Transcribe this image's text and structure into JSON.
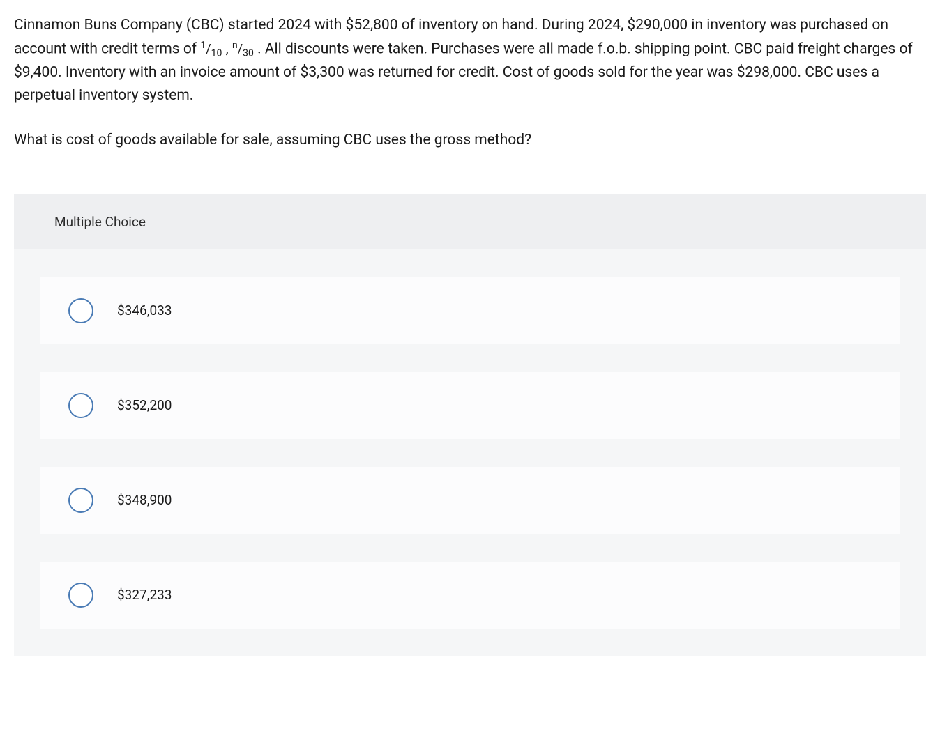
{
  "question": {
    "para1_part1": "Cinnamon Buns Company (CBC) started 2024 with $52,800 of inventory on hand. During 2024, $290,000 in inventory was purchased on account with credit terms of ",
    "fraction1_num": "1",
    "fraction1_den": "10",
    "separator": " , ",
    "fraction2_num": "n",
    "fraction2_den": "30",
    "para1_part2": " . All discounts were taken. Purchases were all made f.o.b. shipping point. CBC paid freight charges of $9,400. Inventory with an invoice amount of $3,300 was returned for credit. Cost of goods sold for the year was $298,000. CBC uses a perpetual inventory system.",
    "prompt": "What is cost of goods available for sale, assuming CBC uses the gross method?"
  },
  "mc": {
    "header": "Multiple Choice",
    "options": {
      "a": "$346,033",
      "b": "$352,200",
      "c": "$348,900",
      "d": "$327,233"
    }
  },
  "styles": {
    "text_color": "#1a1a1a",
    "bg_color": "#ffffff",
    "choices_bg": "#f5f6f7",
    "header_bg": "#eeeff1",
    "option_bg": "#fcfcfd",
    "radio_border": "#4a7bb5",
    "body_fontsize": 21,
    "choice_fontsize": 19
  }
}
